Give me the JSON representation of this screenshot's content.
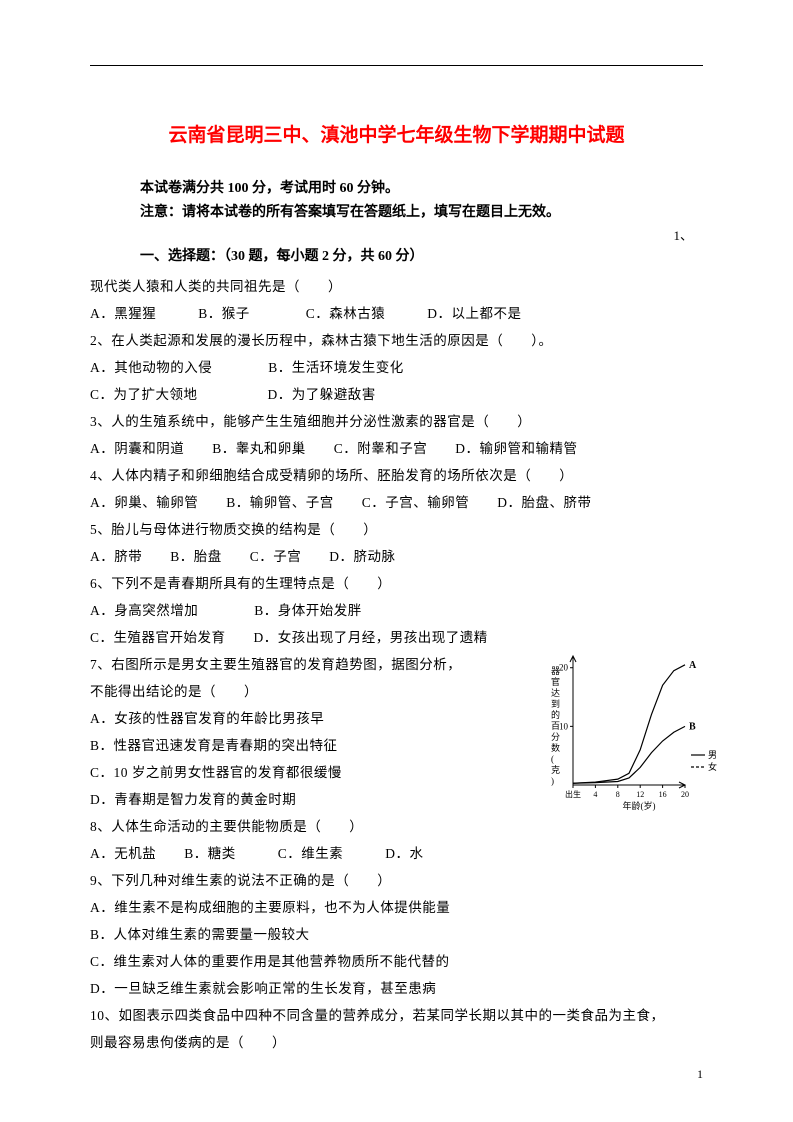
{
  "title": "云南省昆明三中、滇池中学七年级生物下学期期中试题",
  "info1": "本试卷满分共 100 分，考试用时 60 分钟。",
  "info2": "注意：请将本试卷的所有答案填写在答题纸上，填写在题目上无效。",
  "section": "一、选择题：（30 题，每小题 2 分，共 60 分）",
  "q1_trail": "1、",
  "lines": {
    "l0": "现代类人猿和人类的共同祖先是（　　）",
    "l1": "A．黑猩猩　　　B．猴子　　　　C．森林古猿　　　D．以上都不是",
    "l2": "2、在人类起源和发展的漫长历程中，森林古猿下地生活的原因是（　　）。",
    "l3": "A．其他动物的入侵　　　　B．生活环境发生变化",
    "l4": "C．为了扩大领地　　　　　D．为了躲避敌害",
    "l5": "3、人的生殖系统中，能够产生生殖细胞并分泌性激素的器官是（　　）",
    "l6": "A．阴囊和阴道　　B．睾丸和卵巢　　C．附睾和子宫　　D．输卵管和输精管",
    "l7": "4、人体内精子和卵细胞结合成受精卵的场所、胚胎发育的场所依次是（　　）",
    "l8": "A．卵巢、输卵管　　B．输卵管、子宫　　C．子宫、输卵管　　D．胎盘、脐带",
    "l9": "5、胎儿与母体进行物质交换的结构是（　　）",
    "l10": "A．脐带　　B．胎盘　　C．子宫　　D．脐动脉",
    "l11": "6、下列不是青春期所具有的生理特点是（　　）",
    "l12": "A．身高突然增加　　　　B．身体开始发胖",
    "l13": "C．生殖器官开始发育　　D．女孩出现了月经，男孩出现了遗精",
    "l14": "7、右图所示是男女主要生殖器官的发育趋势图，据图分析，",
    "l15": "不能得出结论的是（　　）",
    "l16": "A．女孩的性器官发育的年龄比男孩早",
    "l17": "B．性器官迅速发育是青春期的突出特征",
    "l18": "C．10 岁之前男女性器官的发育都很缓慢",
    "l19": "D．青春期是智力发育的黄金时期",
    "l20": "8、人体生命活动的主要供能物质是（　　）",
    "l21": "A．无机盐　　B．糖类　　　C．维生素　　　D．水",
    "l22": "9、下列几种对维生素的说法不正确的是（　　）",
    "l23": "A．维生素不是构成细胞的主要原料，也不为人体提供能量",
    "l24": "B．人体对维生素的需要量一般较大",
    "l25": "C．维生素对人体的重要作用是其他营养物质所不能代替的",
    "l26": "D．一旦缺乏维生素就会影响正常的生长发育，甚至患病",
    "l27": "10、如图表示四类食品中四种不同含量的营养成分，若某同学长期以其中的一类食品为主食，",
    "l28": "则最容易患佝偻病的是（　　）"
  },
  "chart": {
    "type": "line",
    "ylabel": "器官达到的百分数(克)",
    "xlabel": "年龄(岁)",
    "xticks": [
      "出生",
      "4",
      "8",
      "12",
      "16",
      "20"
    ],
    "yticks": [
      0,
      10,
      20
    ],
    "ylim": [
      0,
      22
    ],
    "xlim": [
      0,
      20
    ],
    "series": [
      {
        "label": "A",
        "points": [
          [
            0,
            0.3
          ],
          [
            4,
            0.5
          ],
          [
            8,
            1
          ],
          [
            10,
            2
          ],
          [
            12,
            6
          ],
          [
            14,
            12
          ],
          [
            16,
            17
          ],
          [
            18,
            19.5
          ],
          [
            20,
            20.5
          ]
        ]
      },
      {
        "label": "B",
        "points": [
          [
            0,
            0.3
          ],
          [
            4,
            0.4
          ],
          [
            8,
            0.6
          ],
          [
            10,
            1.2
          ],
          [
            12,
            3
          ],
          [
            14,
            5.5
          ],
          [
            16,
            7.5
          ],
          [
            18,
            9
          ],
          [
            20,
            10
          ]
        ]
      }
    ],
    "legend": [
      {
        "label": "男",
        "style": "solid"
      },
      {
        "label": "女",
        "style": "dash"
      }
    ],
    "colors": {
      "axis": "#000000",
      "line": "#000000",
      "bg": "#ffffff"
    }
  },
  "page_num": "1"
}
